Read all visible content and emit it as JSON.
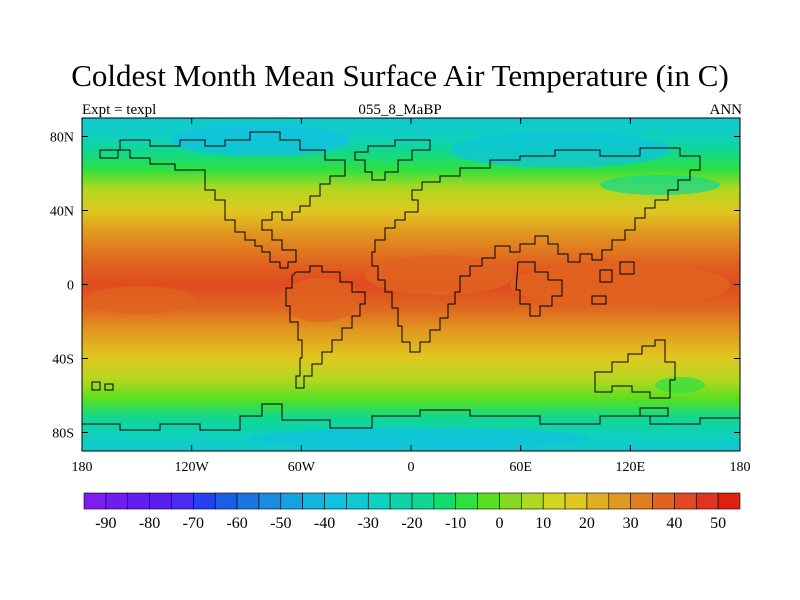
{
  "title": "Coldest Month Mean Surface Air Temperature (in C)",
  "subtitle_left": "Expt = texpl",
  "subtitle_center": "055_8_MaBP",
  "subtitle_right": "ANN",
  "map": {
    "lon_range": [
      -180,
      180
    ],
    "lat_range": [
      -90,
      90
    ],
    "x_ticks": [
      {
        "value": -180,
        "label": "180"
      },
      {
        "value": -120,
        "label": "120W"
      },
      {
        "value": -60,
        "label": "60W"
      },
      {
        "value": 0,
        "label": "0"
      },
      {
        "value": 60,
        "label": "60E"
      },
      {
        "value": 120,
        "label": "120E"
      },
      {
        "value": 180,
        "label": "180"
      }
    ],
    "y_ticks": [
      {
        "value": 80,
        "label": "80N"
      },
      {
        "value": 40,
        "label": "40N"
      },
      {
        "value": 0,
        "label": "0"
      },
      {
        "value": -40,
        "label": "40S"
      },
      {
        "value": -80,
        "label": "80S"
      }
    ],
    "temperature_bands": [
      {
        "lat": 90,
        "value": -35
      },
      {
        "lat": 80,
        "value": -30
      },
      {
        "lat": 72,
        "value": -20
      },
      {
        "lat": 62,
        "value": -10
      },
      {
        "lat": 52,
        "value": 5
      },
      {
        "lat": 40,
        "value": 15
      },
      {
        "lat": 28,
        "value": 28
      },
      {
        "lat": 12,
        "value": 38
      },
      {
        "lat": 0,
        "value": 40
      },
      {
        "lat": -12,
        "value": 36
      },
      {
        "lat": -25,
        "value": 28
      },
      {
        "lat": -40,
        "value": 17
      },
      {
        "lat": -52,
        "value": 8
      },
      {
        "lat": -62,
        "value": -5
      },
      {
        "lat": -72,
        "value": -20
      },
      {
        "lat": -82,
        "value": -28
      },
      {
        "lat": -90,
        "value": -32
      }
    ]
  },
  "colorbar": {
    "levels": [
      -90,
      -85,
      -80,
      -75,
      -70,
      -65,
      -60,
      -55,
      -50,
      -45,
      -40,
      -35,
      -30,
      -25,
      -20,
      -15,
      -10,
      -5,
      0,
      5,
      10,
      15,
      20,
      25,
      30,
      35,
      40,
      45,
      50
    ],
    "colors": [
      "#7e1df0",
      "#6f1cf0",
      "#621ef0",
      "#5a1cf0",
      "#4a2bf0",
      "#2442f0",
      "#1a5ee6",
      "#1c76e0",
      "#1a8ce0",
      "#16a2e0",
      "#12b4e0",
      "#10c2e0",
      "#10c8d0",
      "#10d0c0",
      "#10d4a8",
      "#10d890",
      "#10dc70",
      "#30e040",
      "#58e020",
      "#88d820",
      "#b0d820",
      "#d0d820",
      "#e0c820",
      "#e0b020",
      "#e09820",
      "#e07e20",
      "#e06420",
      "#e04a20",
      "#e03420",
      "#e02010"
    ],
    "labels": [
      "-90",
      "-80",
      "-70",
      "-60",
      "-50",
      "-40",
      "-30",
      "-20",
      "-10",
      "0",
      "10",
      "20",
      "30",
      "40",
      "50"
    ]
  }
}
